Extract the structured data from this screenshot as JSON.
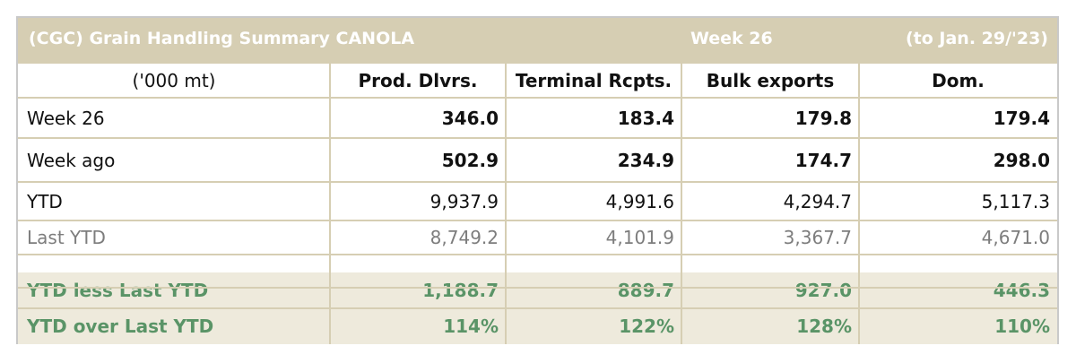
{
  "table": {
    "title": "(CGC) Grain Handling Summary CANOLA",
    "week_label": "Week 26",
    "period": "(to Jan. 29/'23)",
    "unit": "('000 mt)",
    "columns": [
      "Prod. Dlvrs.",
      "Terminal Rcpts.",
      "Bulk exports",
      "Dom."
    ],
    "rows": [
      {
        "label": "Week 26",
        "values": [
          "346.0",
          "183.4",
          "179.8",
          "179.4"
        ]
      },
      {
        "label": "Week ago",
        "values": [
          "502.9",
          "234.9",
          "174.7",
          "298.0"
        ]
      },
      {
        "label": "YTD",
        "values": [
          "9,937.9",
          "4,991.6",
          "4,294.7",
          "5,117.3"
        ]
      },
      {
        "label": "Last YTD",
        "values": [
          "8,749.2",
          "4,101.9",
          "3,367.7",
          "4,671.0"
        ]
      },
      {
        "label": "YTD less Last YTD",
        "values": [
          "1,188.7",
          "889.7",
          "927.0",
          "446.3"
        ]
      },
      {
        "label": "YTD over Last YTD",
        "values": [
          "114%",
          "122%",
          "128%",
          "110%"
        ]
      }
    ]
  },
  "colors": {
    "title_band": "#d6ceb3",
    "highlight_row": "#eeeadc",
    "highlight_text": "#5a9467",
    "muted_text": "#7d7d7d"
  }
}
